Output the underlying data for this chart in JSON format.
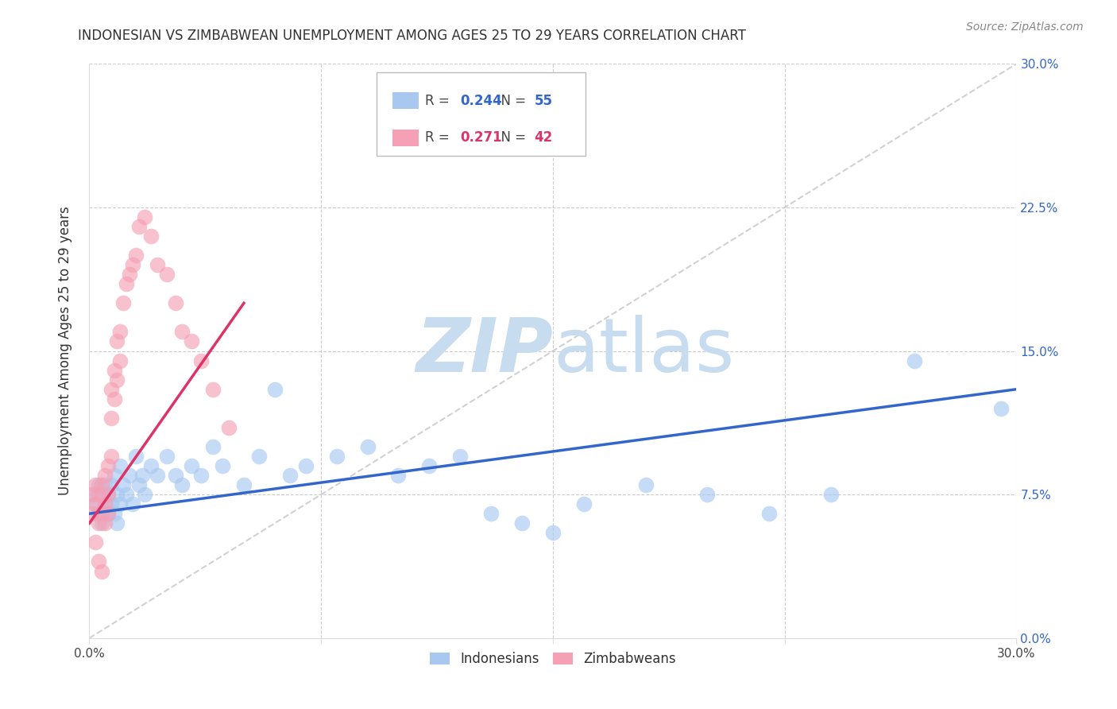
{
  "title": "INDONESIAN VS ZIMBABWEAN UNEMPLOYMENT AMONG AGES 25 TO 29 YEARS CORRELATION CHART",
  "source": "Source: ZipAtlas.com",
  "ylabel": "Unemployment Among Ages 25 to 29 years",
  "xlim": [
    0.0,
    0.3
  ],
  "ylim": [
    0.0,
    0.3
  ],
  "xticks": [
    0.0,
    0.075,
    0.15,
    0.225,
    0.3
  ],
  "yticks": [
    0.0,
    0.075,
    0.15,
    0.225,
    0.3
  ],
  "ytick_labels_right": [
    "0.0%",
    "7.5%",
    "15.0%",
    "22.5%",
    "30.0%"
  ],
  "xtick_labels": [
    "0.0%",
    "",
    "",
    "",
    "30.0%"
  ],
  "legend_r_indonesian": "0.244",
  "legend_n_indonesian": "55",
  "legend_r_zimbabwean": "0.271",
  "legend_n_zimbabwean": "42",
  "indonesian_color": "#a8c8f0",
  "zimbabwean_color": "#f5a0b5",
  "indonesian_line_color": "#3366cc",
  "zimbabwean_line_color": "#dd3366",
  "diagonal_color": "#cccccc",
  "watermark_zip_color": "#c8dcf0",
  "watermark_atlas_color": "#c8dcf0",
  "indonesian_x": [
    0.001,
    0.002,
    0.003,
    0.003,
    0.004,
    0.004,
    0.005,
    0.005,
    0.006,
    0.006,
    0.007,
    0.007,
    0.008,
    0.008,
    0.009,
    0.009,
    0.01,
    0.01,
    0.011,
    0.012,
    0.013,
    0.014,
    0.015,
    0.016,
    0.017,
    0.018,
    0.02,
    0.022,
    0.025,
    0.028,
    0.03,
    0.033,
    0.036,
    0.04,
    0.043,
    0.05,
    0.055,
    0.06,
    0.065,
    0.07,
    0.08,
    0.09,
    0.1,
    0.11,
    0.12,
    0.13,
    0.14,
    0.15,
    0.16,
    0.18,
    0.2,
    0.22,
    0.24,
    0.267,
    0.295
  ],
  "indonesian_y": [
    0.075,
    0.07,
    0.08,
    0.065,
    0.075,
    0.06,
    0.08,
    0.07,
    0.075,
    0.065,
    0.08,
    0.07,
    0.085,
    0.065,
    0.075,
    0.06,
    0.09,
    0.07,
    0.08,
    0.075,
    0.085,
    0.07,
    0.095,
    0.08,
    0.085,
    0.075,
    0.09,
    0.085,
    0.095,
    0.085,
    0.08,
    0.09,
    0.085,
    0.1,
    0.09,
    0.08,
    0.095,
    0.13,
    0.085,
    0.09,
    0.095,
    0.1,
    0.085,
    0.09,
    0.095,
    0.065,
    0.06,
    0.055,
    0.07,
    0.08,
    0.075,
    0.065,
    0.075,
    0.145,
    0.12
  ],
  "zimbabwean_x": [
    0.001,
    0.001,
    0.002,
    0.002,
    0.002,
    0.003,
    0.003,
    0.003,
    0.004,
    0.004,
    0.004,
    0.005,
    0.005,
    0.005,
    0.006,
    0.006,
    0.006,
    0.007,
    0.007,
    0.007,
    0.008,
    0.008,
    0.009,
    0.009,
    0.01,
    0.01,
    0.011,
    0.012,
    0.013,
    0.014,
    0.015,
    0.016,
    0.018,
    0.02,
    0.022,
    0.025,
    0.028,
    0.03,
    0.033,
    0.036,
    0.04,
    0.045
  ],
  "zimbabwean_y": [
    0.075,
    0.065,
    0.08,
    0.07,
    0.05,
    0.075,
    0.06,
    0.04,
    0.08,
    0.065,
    0.035,
    0.085,
    0.07,
    0.06,
    0.09,
    0.075,
    0.065,
    0.13,
    0.115,
    0.095,
    0.14,
    0.125,
    0.155,
    0.135,
    0.16,
    0.145,
    0.175,
    0.185,
    0.19,
    0.195,
    0.2,
    0.215,
    0.22,
    0.21,
    0.195,
    0.19,
    0.175,
    0.16,
    0.155,
    0.145,
    0.13,
    0.11
  ],
  "indo_line_x0": 0.0,
  "indo_line_x1": 0.3,
  "indo_line_y0": 0.065,
  "indo_line_y1": 0.13,
  "zimb_line_x0": 0.0,
  "zimb_line_x1": 0.05,
  "zimb_line_y0": 0.06,
  "zimb_line_y1": 0.175
}
